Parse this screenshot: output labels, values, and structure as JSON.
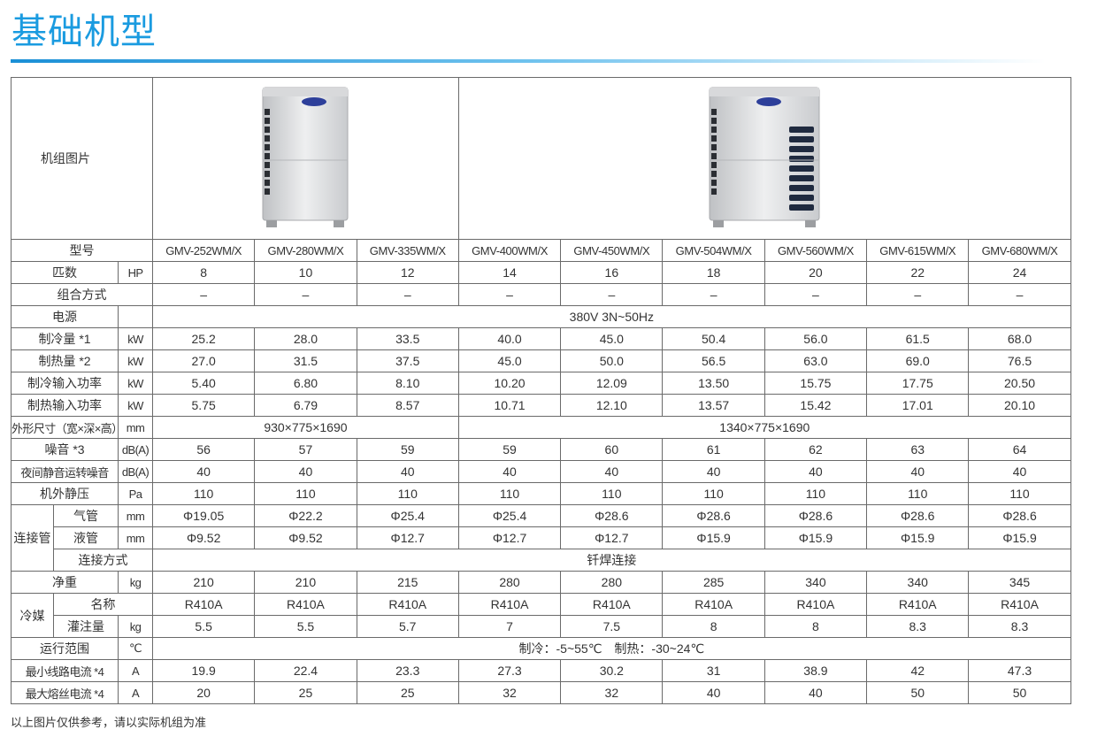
{
  "header": {
    "title": "基础机型"
  },
  "table": {
    "image_label": "机组图片",
    "model_label": "型号",
    "models": [
      "GMV-252WM/X",
      "GMV-280WM/X",
      "GMV-335WM/X",
      "GMV-400WM/X",
      "GMV-450WM/X",
      "GMV-504WM/X",
      "GMV-560WM/X",
      "GMV-615WM/X",
      "GMV-680WM/X"
    ],
    "rows": [
      {
        "label": "匹数",
        "unit": "HP",
        "values": [
          "8",
          "10",
          "12",
          "14",
          "16",
          "18",
          "20",
          "22",
          "24"
        ]
      },
      {
        "label": "组合方式",
        "values": [
          "–",
          "–",
          "–",
          "–",
          "–",
          "–",
          "–",
          "–",
          "–"
        ]
      },
      {
        "label": "电源",
        "values": [
          "380V 3N~50Hz"
        ]
      },
      {
        "label": "制冷量 *1",
        "unit": "kW",
        "values": [
          "25.2",
          "28.0",
          "33.5",
          "40.0",
          "45.0",
          "50.4",
          "56.0",
          "61.5",
          "68.0"
        ]
      },
      {
        "label": "制热量 *2",
        "unit": "kW",
        "values": [
          "27.0",
          "31.5",
          "37.5",
          "45.0",
          "50.0",
          "56.5",
          "63.0",
          "69.0",
          "76.5"
        ]
      },
      {
        "label": "制冷输入功率",
        "unit": "kW",
        "values": [
          "5.40",
          "6.80",
          "8.10",
          "10.20",
          "12.09",
          "13.50",
          "15.75",
          "17.75",
          "20.50"
        ]
      },
      {
        "label": "制热输入功率",
        "unit": "kW",
        "values": [
          "5.75",
          "6.79",
          "8.57",
          "10.71",
          "12.10",
          "13.57",
          "15.42",
          "17.01",
          "20.10"
        ]
      },
      {
        "label": "外形尺寸（宽×深×高）",
        "unit": "mm",
        "values": [
          "930×775×1690",
          "1340×775×1690"
        ]
      },
      {
        "label": "噪音 *3",
        "unit": "dB(A)",
        "values": [
          "56",
          "57",
          "59",
          "59",
          "60",
          "61",
          "62",
          "63",
          "64"
        ]
      },
      {
        "label": "夜间静音运转噪音",
        "unit": "dB(A)",
        "values": [
          "40",
          "40",
          "40",
          "40",
          "40",
          "40",
          "40",
          "40",
          "40"
        ]
      },
      {
        "label": "机外静压",
        "unit": "Pa",
        "values": [
          "110",
          "110",
          "110",
          "110",
          "110",
          "110",
          "110",
          "110",
          "110"
        ]
      },
      {
        "label": "连接管",
        "rows": [
          {
            "label": "气管",
            "unit": "mm",
            "values": [
              "Φ19.05",
              "Φ22.2",
              "Φ25.4",
              "Φ25.4",
              "Φ28.6",
              "Φ28.6",
              "Φ28.6",
              "Φ28.6",
              "Φ28.6"
            ]
          },
          {
            "label": "液管",
            "unit": "mm",
            "values": [
              "Φ9.52",
              "Φ9.52",
              "Φ12.7",
              "Φ12.7",
              "Φ12.7",
              "Φ15.9",
              "Φ15.9",
              "Φ15.9",
              "Φ15.9"
            ]
          },
          {
            "label": "连接方式",
            "values": [
              "钎焊连接"
            ]
          }
        ]
      },
      {
        "label": "净重",
        "unit": "kg",
        "values": [
          "210",
          "210",
          "215",
          "280",
          "280",
          "285",
          "340",
          "340",
          "345"
        ]
      },
      {
        "label": "冷媒",
        "rows": [
          {
            "label": "名称",
            "values": [
              "R410A",
              "R410A",
              "R410A",
              "R410A",
              "R410A",
              "R410A",
              "R410A",
              "R410A",
              "R410A"
            ]
          },
          {
            "label": "灌注量",
            "unit": "kg",
            "values": [
              "5.5",
              "5.5",
              "5.7",
              "7",
              "7.5",
              "8",
              "8",
              "8.3",
              "8.3"
            ]
          }
        ]
      },
      {
        "label": "运行范围",
        "unit": "℃",
        "values": [
          "制冷：-5~55℃　制热：-30~24℃"
        ]
      },
      {
        "label": "最小线路电流 *4",
        "unit": "A",
        "values": [
          "19.9",
          "22.4",
          "23.3",
          "27.3",
          "30.2",
          "31",
          "38.9",
          "42",
          "47.3"
        ]
      },
      {
        "label": "最大熔丝电流 *4",
        "unit": "A",
        "values": [
          "20",
          "25",
          "25",
          "32",
          "32",
          "40",
          "40",
          "50",
          "50"
        ]
      }
    ]
  },
  "footnote": "以上图片仅供参考，请以实际机组为准"
}
